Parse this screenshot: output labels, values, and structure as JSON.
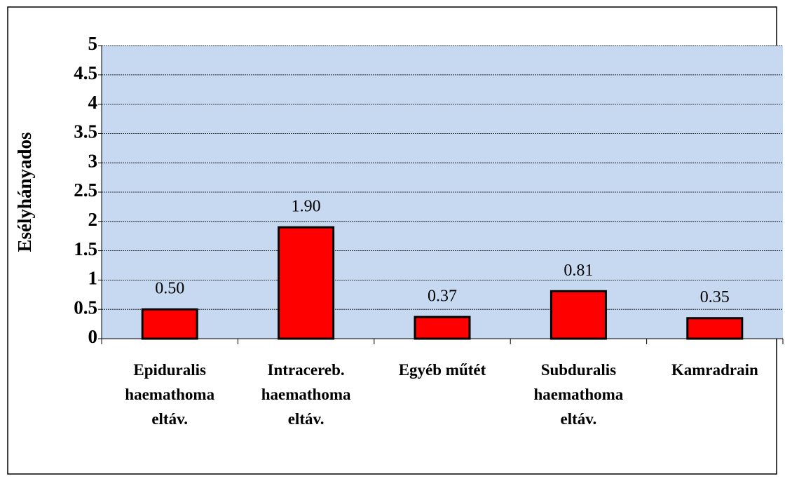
{
  "chart_data": {
    "type": "bar",
    "y_label": "Esélyhányados",
    "categories": [
      "Epiduralis\nhaemathoma\neltáv.",
      "Intracereb.\nhaemathoma\neltáv.",
      "Egyéb műtét",
      "Subduralis\nhaemathoma\neltáv.",
      "Kamradrain"
    ],
    "values": [
      0.5,
      1.9,
      0.37,
      0.81,
      0.35
    ],
    "value_labels": [
      "0.50",
      "1.90",
      "0.37",
      "0.81",
      "0.35"
    ],
    "color": "#ff0000",
    "ylim": [
      0,
      5
    ],
    "yticks": [
      0,
      0.5,
      1,
      1.5,
      2,
      2.5,
      3,
      3.5,
      4,
      4.5,
      5
    ],
    "grid": true,
    "background": "#c6d9f1"
  }
}
